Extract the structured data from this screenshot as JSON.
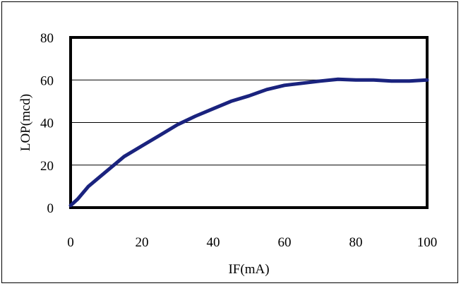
{
  "chart_data": {
    "type": "line",
    "title": "",
    "xlabel": "IF(mA)",
    "ylabel": "LOP(mcd)",
    "xlim": [
      0,
      100
    ],
    "ylim": [
      0,
      80
    ],
    "x_ticks": [
      0,
      20,
      40,
      60,
      80,
      100
    ],
    "y_ticks": [
      0,
      20,
      40,
      60,
      80
    ],
    "grid": "horizontal",
    "legend": "none",
    "series": [
      {
        "color": "#1a237e",
        "x": [
          0,
          2,
          5,
          10,
          15,
          20,
          25,
          30,
          35,
          40,
          45,
          50,
          55,
          60,
          65,
          70,
          75,
          80,
          85,
          90,
          95,
          100
        ],
        "values": [
          1,
          4,
          10,
          17,
          24,
          29,
          34,
          39,
          43,
          46.5,
          50,
          52.5,
          55.5,
          57.5,
          58.5,
          59.5,
          60.3,
          60,
          60,
          59.5,
          59.5,
          60
        ]
      }
    ]
  }
}
